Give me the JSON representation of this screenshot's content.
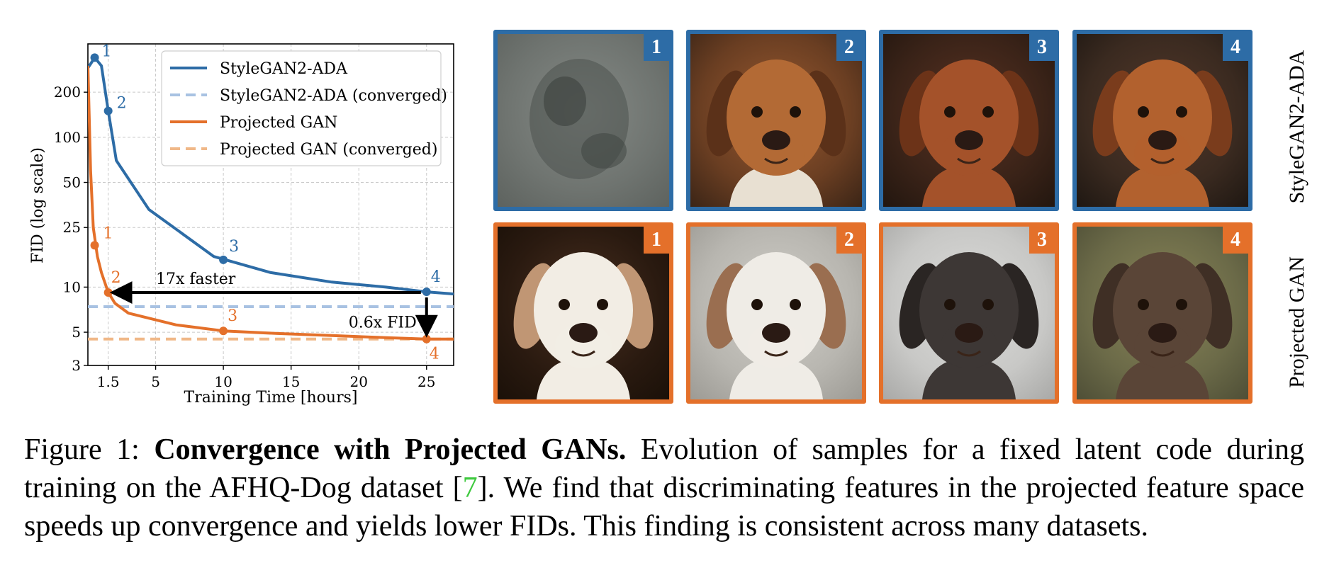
{
  "colors": {
    "stylegan": "#2d6ca6",
    "stylegan_converged": "#a8c2e2",
    "projected": "#e4702a",
    "projected_converged": "#f0b888",
    "ref": "#3ec93e"
  },
  "chart_data": {
    "type": "line",
    "xlabel": "Training Time [hours]",
    "ylabel": "FID (log scale)",
    "yscale": "log",
    "xlim": [
      0,
      27
    ],
    "ylim": [
      3,
      420
    ],
    "xticks": [
      1.5,
      5,
      10,
      15,
      20,
      25
    ],
    "xticklabels": [
      "1.5",
      "5",
      "10",
      "15",
      "20",
      "25"
    ],
    "yticks": [
      3,
      5,
      10,
      25,
      50,
      100,
      200
    ],
    "yticklabels": [
      "3",
      "5",
      "10",
      "25",
      "50",
      "100",
      "200"
    ],
    "grid": true,
    "legend_position": "top-right",
    "series": [
      {
        "name": "StyleGAN2-ADA",
        "x": [
          0,
          0.5,
          1.0,
          1.5,
          2.1,
          4.5,
          9.3,
          13.5,
          18,
          22,
          25,
          27
        ],
        "y": [
          290,
          340,
          300,
          150,
          70,
          33,
          16,
          12.5,
          10.8,
          10,
          9.3,
          9
        ]
      },
      {
        "name": "StyleGAN2-ADA (converged)",
        "y": 7.4
      },
      {
        "name": "Projected GAN",
        "x": [
          0,
          0.2,
          0.4,
          0.7,
          1.0,
          1.5,
          2.0,
          3.0,
          6.5,
          10,
          14,
          18,
          22,
          25,
          27
        ],
        "y": [
          300,
          60,
          25,
          16,
          12.5,
          9.2,
          7.8,
          6.7,
          5.6,
          5.1,
          4.9,
          4.75,
          4.6,
          4.5,
          4.5
        ]
      },
      {
        "name": "Projected GAN (converged)",
        "y": 4.5
      }
    ],
    "markers": {
      "stylegan": [
        {
          "label": "1",
          "x": 0.5,
          "y": 340
        },
        {
          "label": "2",
          "x": 1.5,
          "y": 150
        },
        {
          "label": "3",
          "x": 10,
          "y": 15.2
        },
        {
          "label": "4",
          "x": 25,
          "y": 9.3
        }
      ],
      "projected": [
        {
          "label": "1",
          "x": 0.5,
          "y": 19
        },
        {
          "label": "2",
          "x": 1.5,
          "y": 9.2
        },
        {
          "label": "3",
          "x": 10,
          "y": 5.1
        },
        {
          "label": "4",
          "x": 25,
          "y": 4.5
        }
      ]
    },
    "annotations": {
      "faster": "17x faster",
      "fid": "0.6x FID"
    }
  },
  "grid": {
    "row_labels": [
      "StyleGAN2-ADA",
      "Projected GAN"
    ],
    "tile_numbers": [
      "1",
      "2",
      "3",
      "4"
    ]
  },
  "caption": {
    "label": "Figure 1: ",
    "title": "Convergence with Projected GANs.",
    "text_before_ref": " Evolution of samples for a fixed latent code during training on the AFHQ-Dog dataset [",
    "ref": "7",
    "text_after_ref": "]. We find that discriminating features in the projected feature space speeds up convergence and yields lower FIDs. This finding is consistent across many datasets."
  }
}
